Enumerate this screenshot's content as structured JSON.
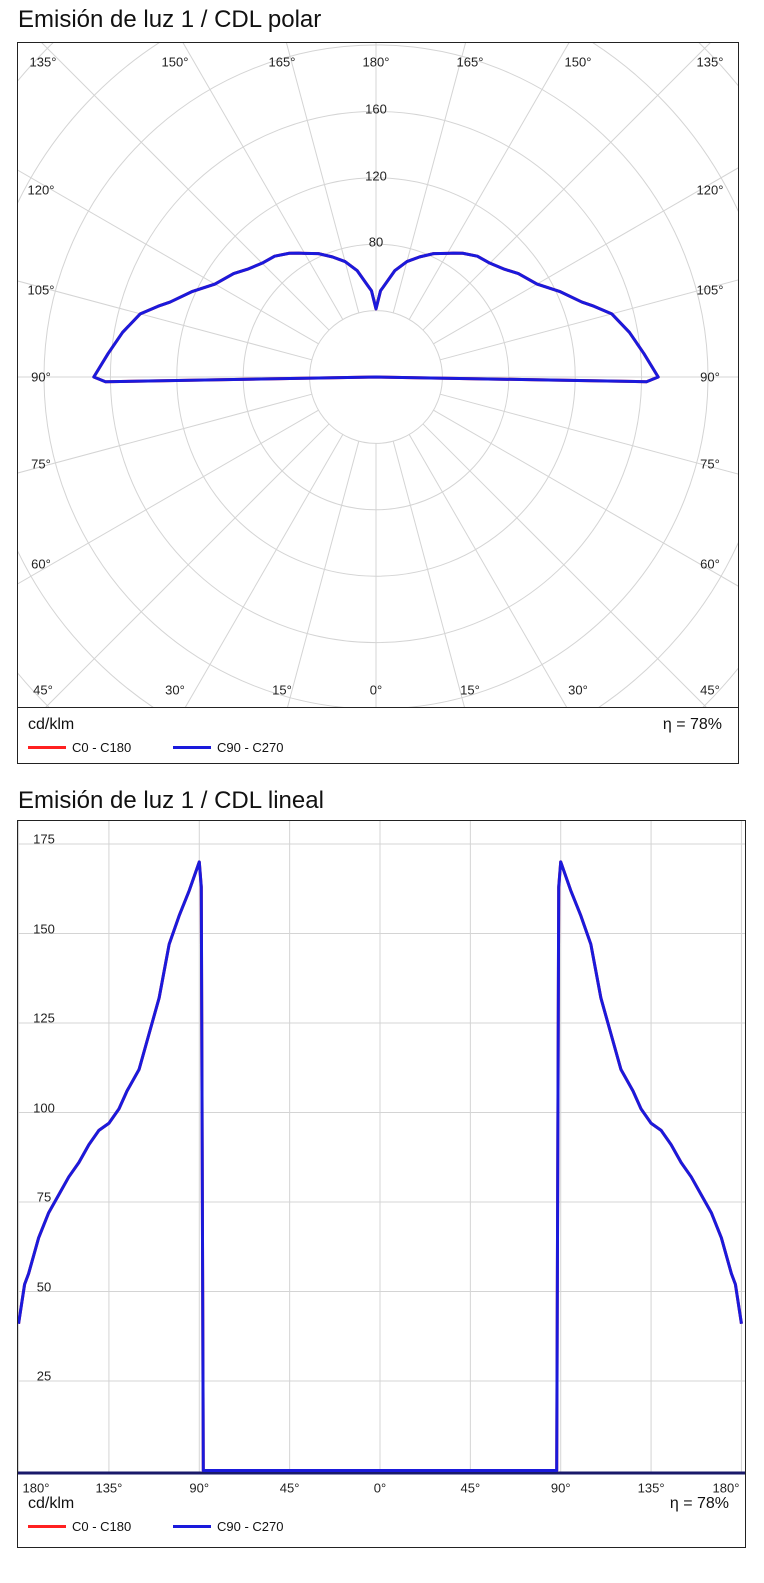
{
  "polar": {
    "title": "Emisión de luz 1 / CDL polar",
    "unit": "cd/klm",
    "efficiency": "η = 78%",
    "ring_labels": [
      "80",
      "120",
      "160"
    ],
    "angle_labels_top": [
      "135°",
      "150°",
      "165°",
      "180°",
      "165°",
      "150°",
      "135°"
    ],
    "angle_labels_left": [
      "120°",
      "105°",
      "90°",
      "75°",
      "60°"
    ],
    "angle_labels_right": [
      "120°",
      "105°",
      "90°",
      "75°",
      "60°"
    ],
    "angle_labels_bottom": [
      "45°",
      "30°",
      "15°",
      "0°",
      "15°",
      "30°",
      "45°"
    ],
    "legend": [
      "C0 - C180",
      "C90 - C270"
    ]
  },
  "linear": {
    "title": "Emisión de luz 1 / CDL lineal",
    "unit": "cd/klm",
    "efficiency": "η = 78%",
    "y_ticks": [
      "175",
      "150",
      "125",
      "100",
      "75",
      "50",
      "25"
    ],
    "x_ticks": [
      "180°",
      "135°",
      "90°",
      "45°",
      "0°",
      "45°",
      "90°",
      "135°",
      "180°"
    ],
    "legend": [
      "C0 - C180",
      "C90 - C270"
    ]
  },
  "chart_data": [
    {
      "type": "line",
      "subtype": "polar",
      "title": "Emisión de luz 1 / CDL polar",
      "unit": "cd/klm",
      "r_ticks": [
        40,
        80,
        120,
        160,
        200,
        240
      ],
      "angle_step_deg": 15,
      "colors": {
        "C0 - C180": "#ff2020",
        "C90 - C270": "#1a1adc"
      },
      "gamma": [
        0,
        88,
        89,
        90,
        95,
        100,
        105,
        108,
        110,
        115,
        120,
        126,
        130,
        135,
        140,
        145,
        148,
        150,
        155,
        160,
        165,
        170,
        175,
        177,
        180
      ],
      "series": [
        {
          "name": "C90 - C270",
          "values": [
            0,
            0,
            163,
            170,
            162,
            155,
            147,
            138,
            132,
            122,
            112,
            106,
            101,
            97,
            95,
            91,
            88,
            86,
            82,
            77,
            72,
            65,
            55,
            52,
            41
          ]
        },
        {
          "name": "C0 - C180",
          "values": [
            0,
            0,
            163,
            170,
            162,
            155,
            147,
            138,
            132,
            122,
            112,
            106,
            101,
            97,
            95,
            91,
            88,
            86,
            82,
            77,
            72,
            65,
            55,
            52,
            41
          ]
        }
      ]
    },
    {
      "type": "line",
      "title": "Emisión de luz 1 / CDL lineal",
      "ylabel": "cd/klm",
      "xlim": [
        -180,
        180
      ],
      "ylim": [
        0,
        175
      ],
      "grid": true,
      "colors": {
        "C0 - C180": "#ff2020",
        "C90 - C270": "#1a1adc"
      }
    }
  ]
}
